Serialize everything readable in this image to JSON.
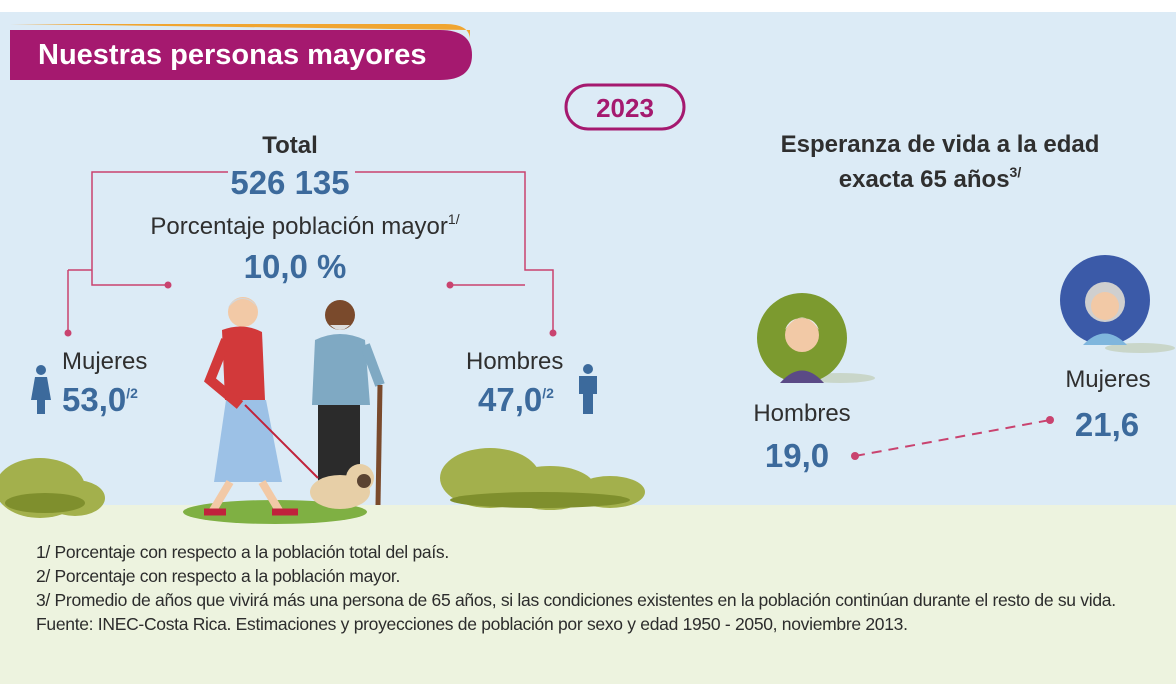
{
  "header": {
    "title": "Nuestras personas mayores",
    "year": "2023"
  },
  "population": {
    "total_label": "Total",
    "total_value": "526 135",
    "share_label": "Porcentaje población mayor",
    "share_note": "1/",
    "share_value": "10,0 %",
    "women": {
      "label": "Mujeres",
      "value": "53,0",
      "note": "/2"
    },
    "men": {
      "label": "Hombres",
      "value": "47,0",
      "note": "/2"
    }
  },
  "life_expectancy": {
    "title_line1": "Esperanza de vida a la edad",
    "title_line2": "exacta 65 años",
    "note": "3/",
    "men": {
      "label": "Hombres",
      "value": "19,0"
    },
    "women": {
      "label": "Mujeres",
      "value": "21,6"
    }
  },
  "footnotes": [
    "1/ Porcentaje con respecto a la población total del país.",
    "2/ Porcentaje con respecto a la población mayor.",
    "3/ Promedio de años que vivirá más una persona de 65 años, si las condiciones existentes en la población continúan durante el resto de su vida.",
    "Fuente: INEC-Costa Rica. Estimaciones y proyecciones de población por sexo y edad 1950 - 2050, noviembre 2013."
  ]
}
